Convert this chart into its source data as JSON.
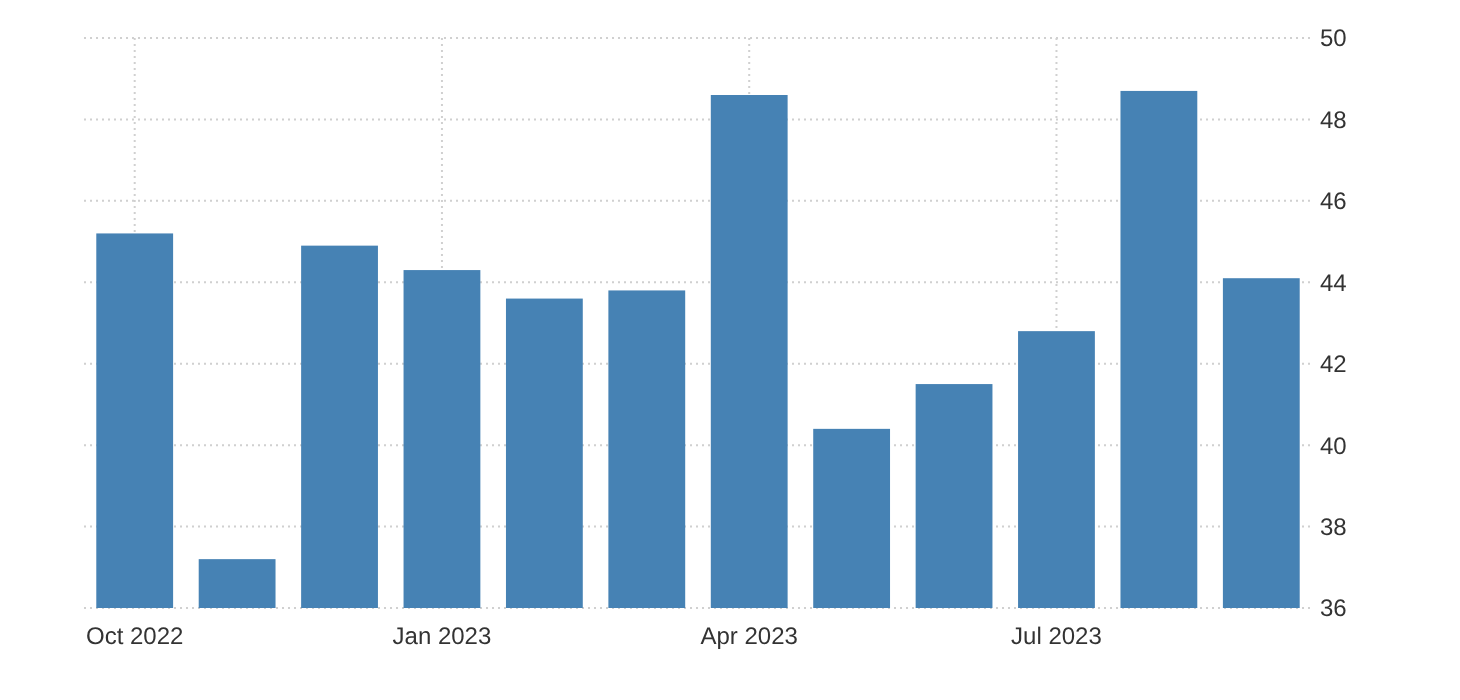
{
  "chart_data": {
    "type": "bar",
    "categories": [
      "Oct 2022",
      null,
      null,
      "Jan 2023",
      null,
      null,
      "Apr 2023",
      null,
      null,
      "Jul 2023",
      null,
      null
    ],
    "values": [
      45.2,
      37.2,
      44.9,
      44.3,
      43.6,
      43.8,
      48.6,
      40.4,
      41.5,
      42.8,
      48.7,
      44.1
    ],
    "color": "#4682b4",
    "ylim": [
      36,
      50
    ],
    "yticks": [
      36,
      38,
      40,
      42,
      44,
      46,
      48,
      50
    ],
    "grid": true
  }
}
